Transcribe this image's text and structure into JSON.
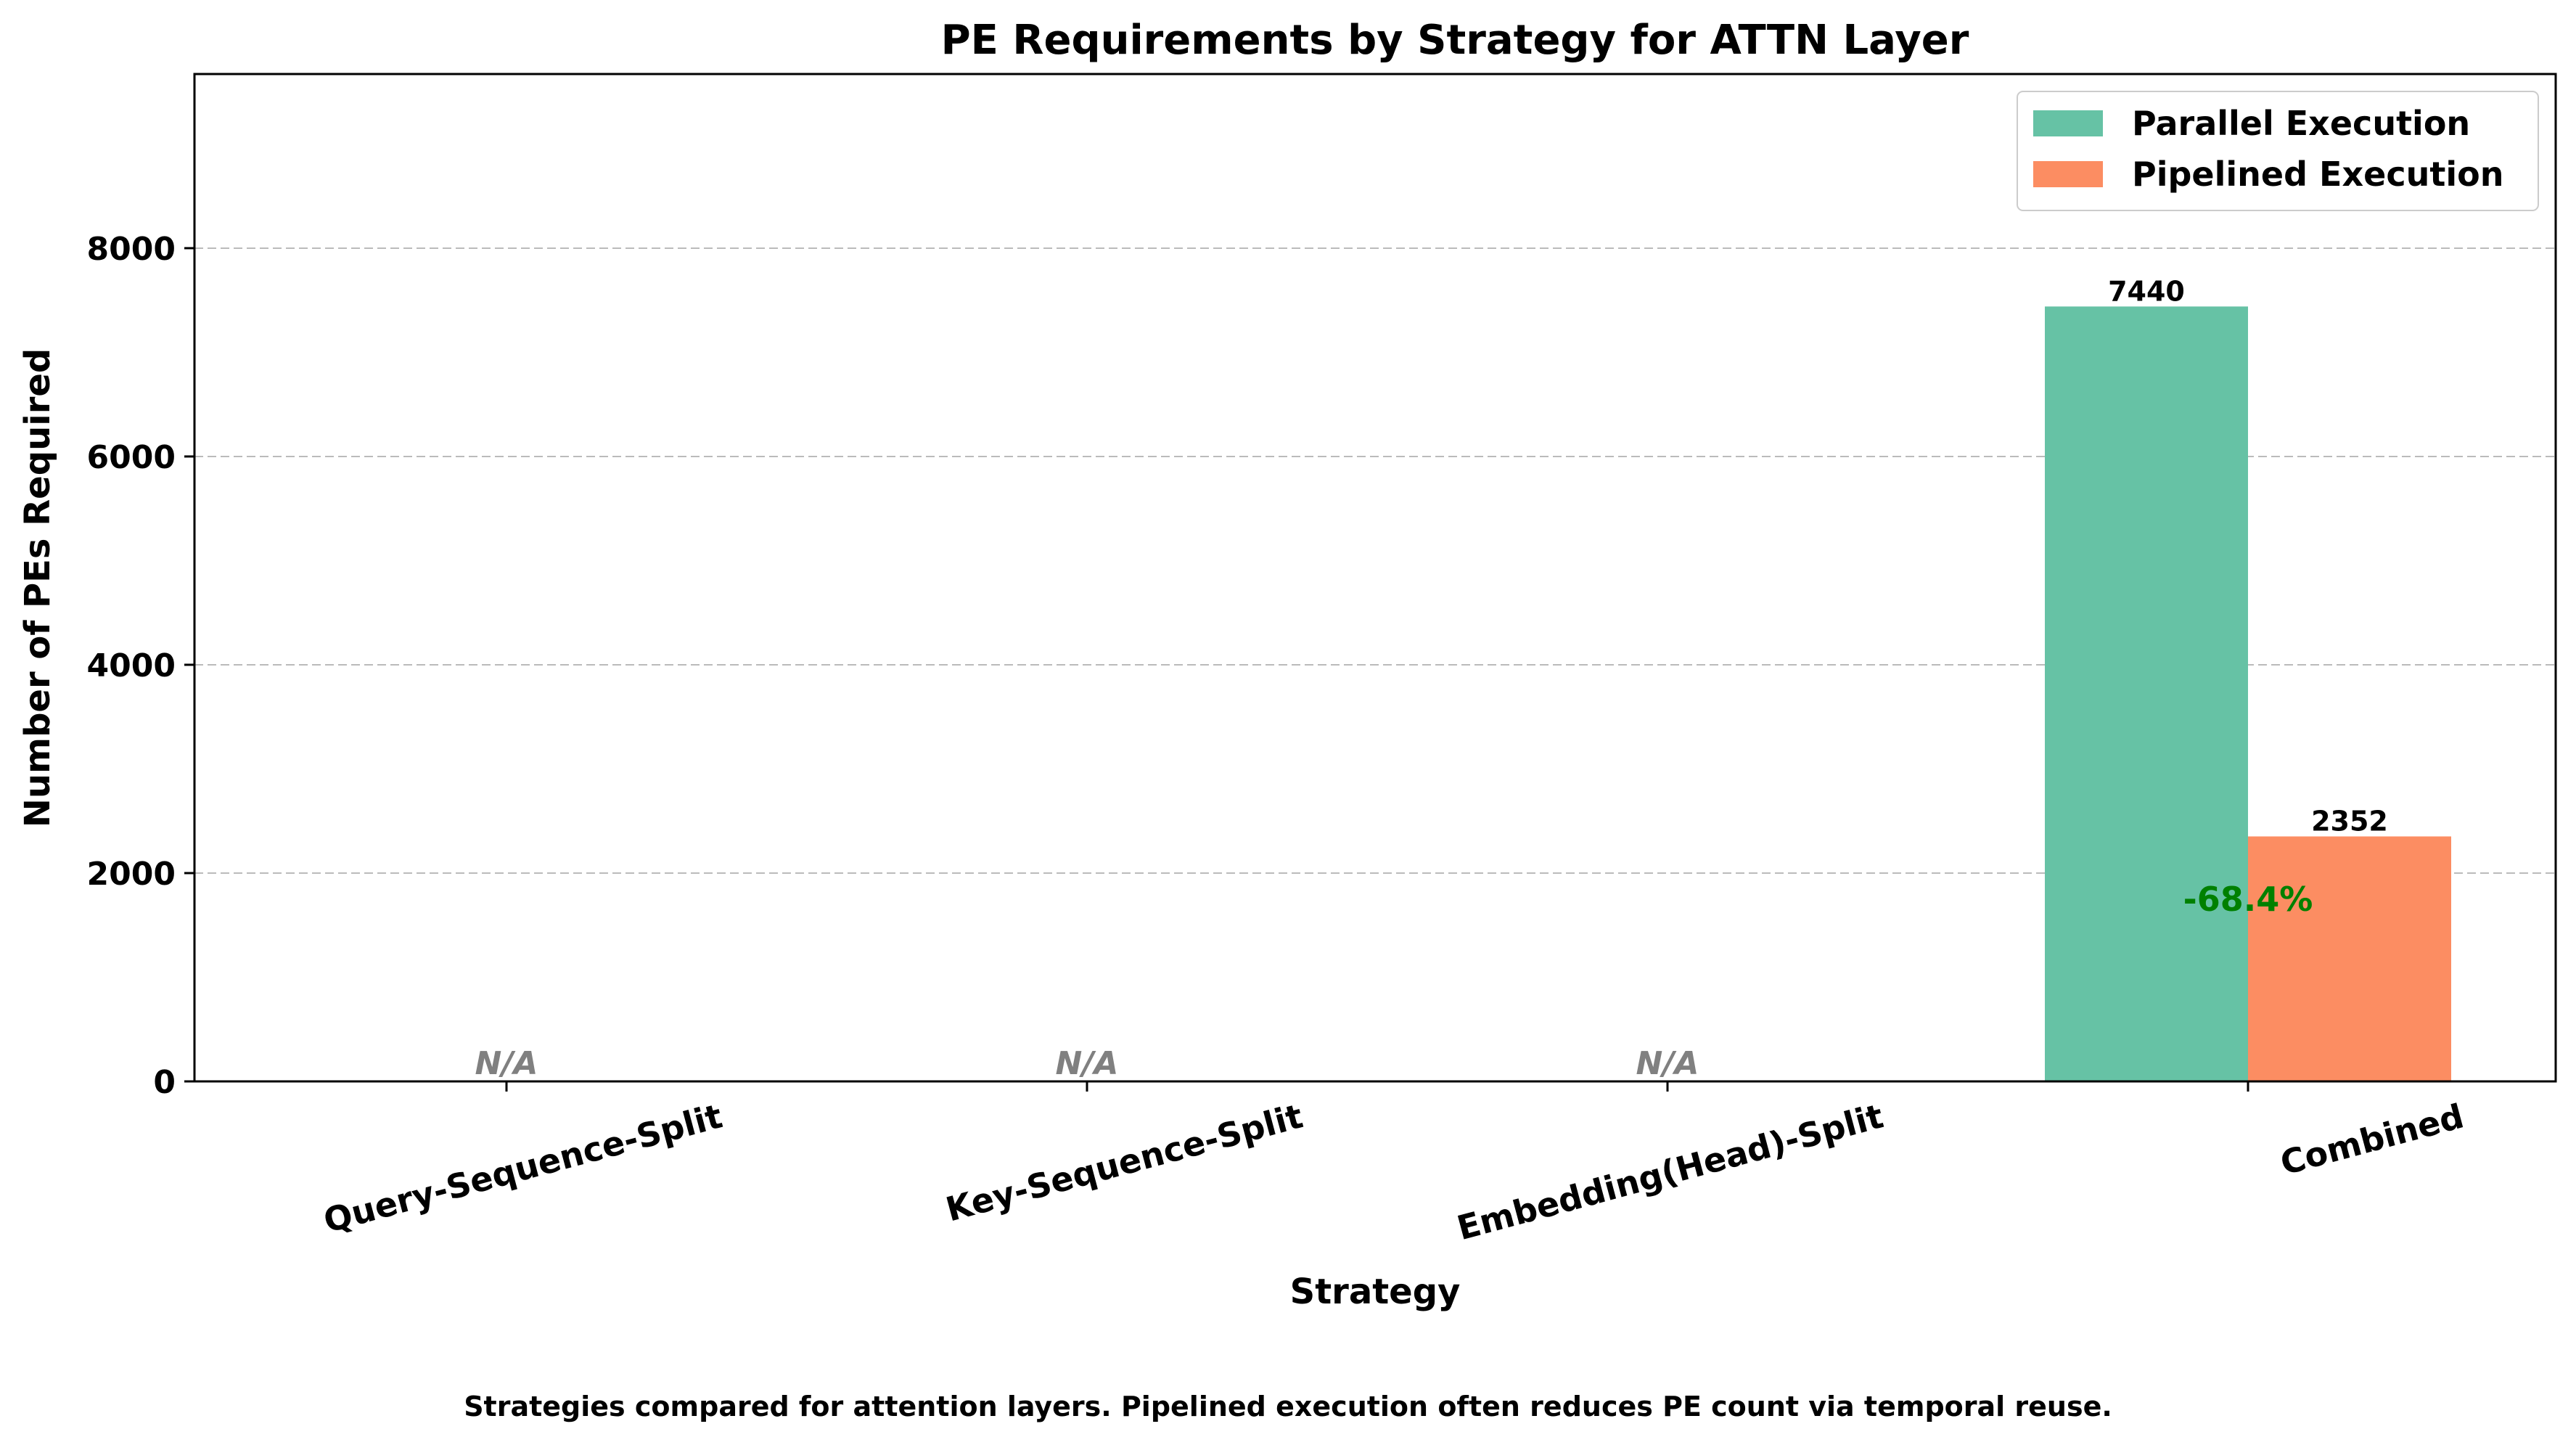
{
  "chart_data": {
    "type": "bar",
    "title": "PE Requirements by Strategy for ATTN Layer",
    "xlabel": "Strategy",
    "ylabel": "Number of PEs Required",
    "categories": [
      "Query-Sequence-Split",
      "Key-Sequence-Split",
      "Embedding(Head)-Split",
      "Combined"
    ],
    "series": [
      {
        "name": "Parallel Execution",
        "color": "#66c2a5",
        "values": [
          null,
          null,
          null,
          7440
        ],
        "labels": [
          "",
          "",
          "",
          "7440"
        ]
      },
      {
        "name": "Pipelined Execution",
        "color": "#fc8d62",
        "values": [
          null,
          null,
          null,
          2352
        ],
        "labels": [
          "",
          "",
          "",
          "2352"
        ]
      }
    ],
    "na_label": "N/A",
    "na_color": "#808080",
    "reduction": {
      "category": "Combined",
      "label": "-68.4%",
      "y": 1750,
      "color": "#008000"
    },
    "ylim": [
      0,
      9672
    ],
    "yticks": [
      0,
      2000,
      4000,
      6000,
      8000
    ],
    "grid": true,
    "grid_axis": "y",
    "legend_position": "top-right",
    "caption": "Strategies compared for attention layers. Pipelined execution often reduces PE count via temporal reuse."
  }
}
